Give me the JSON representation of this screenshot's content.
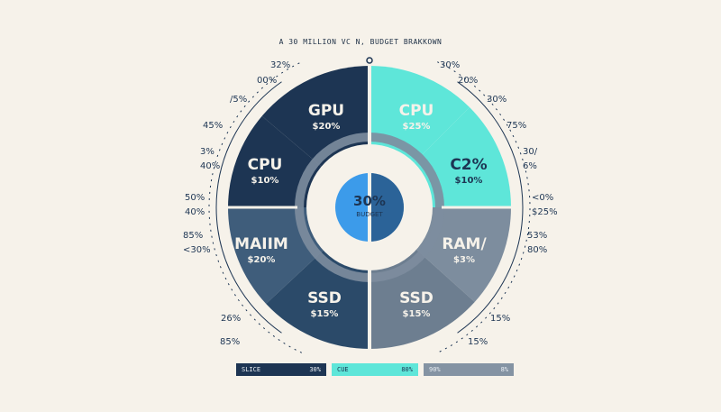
{
  "title": "A 30 MILLION VC N, BUDGET BRAKKOWN",
  "colors": {
    "navy": "#1d3553",
    "navy2": "#2b4a69",
    "slate": "#3f5d7b",
    "teal": "#5ee6d9",
    "gray": "#7d8d9e",
    "gray_dark": "#6d7e90",
    "center_blue": "#3c9bea",
    "tick": "#5ee6d9"
  },
  "center": {
    "value": "30%",
    "label": "BUDGET"
  },
  "chart_data": {
    "type": "pie",
    "title": "A 30 MILLION VC N, BUDGET BRAKKOWN",
    "slices": [
      {
        "name": "GPU",
        "value_label": "$20%",
        "side": "left"
      },
      {
        "name": "CPU",
        "value_label": "$10%",
        "side": "left"
      },
      {
        "name": "MAIIM",
        "value_label": "$20%",
        "side": "left"
      },
      {
        "name": "SSD",
        "value_label": "$15%",
        "side": "left"
      },
      {
        "name": "CPU",
        "value_label": "$25%",
        "side": "right"
      },
      {
        "name": "C2%",
        "value_label": "$10%",
        "side": "right"
      },
      {
        "name": "RAM/",
        "value_label": "$3%",
        "side": "right"
      },
      {
        "name": "SSD",
        "value_label": "$15%",
        "side": "right"
      }
    ],
    "outer_labels_left": [
      "32%",
      "00%",
      "/5%",
      "45%",
      "3%",
      "40%",
      "50%",
      "40%",
      "85%",
      "<30%",
      "26%",
      "85%"
    ],
    "outer_labels_right": [
      "30%",
      "20%",
      "30%",
      "75%",
      "30/",
      "6%",
      "<0%",
      "$25%",
      "53%",
      "80%",
      "15%",
      "15%"
    ]
  },
  "legend": [
    {
      "label": "SLICE",
      "value": "30%"
    },
    {
      "label": "CUE",
      "value": "80%"
    },
    {
      "label": "90%",
      "value": "8%"
    }
  ]
}
